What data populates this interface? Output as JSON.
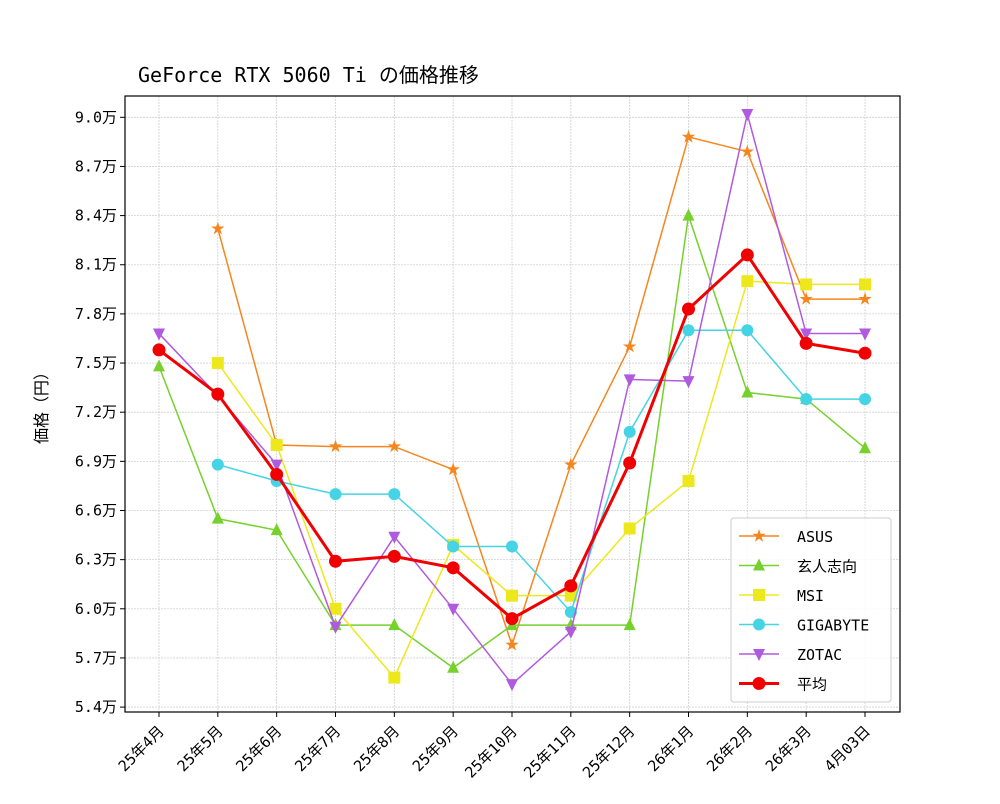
{
  "chart_data": {
    "type": "line",
    "title": "GeForce RTX 5060 Ti の価格推移",
    "xlabel": "",
    "ylabel": "価格（円）",
    "categories": [
      "25年4月",
      "25年5月",
      "25年6月",
      "25年7月",
      "25年8月",
      "25年9月",
      "25年10月",
      "25年11月",
      "25年12月",
      "26年1月",
      "26年2月",
      "26年3月",
      "4月03日"
    ],
    "yticks": [
      5.4,
      5.7,
      6.0,
      6.3,
      6.6,
      6.9,
      7.2,
      7.5,
      7.8,
      8.1,
      8.4,
      8.7,
      9.0
    ],
    "ytick_labels": [
      "5.4万",
      "5.7万",
      "6.0万",
      "6.3万",
      "6.6万",
      "6.9万",
      "7.2万",
      "7.5万",
      "7.8万",
      "8.1万",
      "8.4万",
      "8.7万",
      "9.0万"
    ],
    "y_unit": "万円",
    "ylim": [
      5.37,
      9.13
    ],
    "grid": true,
    "legend_position": "lower-right",
    "series": [
      {
        "name": "ASUS",
        "color": "#f5861f",
        "marker": "star",
        "values": [
          null,
          8.32,
          7.0,
          6.99,
          6.99,
          6.85,
          5.78,
          6.88,
          7.6,
          8.88,
          8.79,
          7.89,
          7.89
        ]
      },
      {
        "name": "玄人志向",
        "color": "#76d12c",
        "marker": "triangle-up",
        "values": [
          7.48,
          6.55,
          6.48,
          5.9,
          5.9,
          5.64,
          5.9,
          5.9,
          5.9,
          8.4,
          7.32,
          7.28,
          6.98
        ]
      },
      {
        "name": "MSI",
        "color": "#ede81c",
        "marker": "square",
        "values": [
          null,
          7.5,
          7.0,
          6.0,
          5.58,
          6.39,
          6.08,
          6.08,
          6.49,
          6.78,
          8.0,
          7.98,
          7.98
        ]
      },
      {
        "name": "GIGABYTE",
        "color": "#45d4e3",
        "marker": "circle",
        "values": [
          null,
          6.88,
          6.78,
          6.7,
          6.7,
          6.38,
          6.38,
          5.98,
          7.08,
          7.7,
          7.7,
          7.28,
          7.28
        ]
      },
      {
        "name": "ZOTAC",
        "color": "#b05ae0",
        "marker": "triangle-down",
        "values": [
          7.68,
          7.3,
          6.88,
          5.89,
          6.44,
          6.0,
          5.54,
          5.86,
          7.4,
          7.39,
          9.02,
          7.68,
          7.68
        ]
      },
      {
        "name": "平均",
        "color": "#f00000",
        "marker": "circle",
        "bold": true,
        "values": [
          7.58,
          7.31,
          6.82,
          6.29,
          6.32,
          6.25,
          5.94,
          6.14,
          6.89,
          7.83,
          8.16,
          7.62,
          7.56
        ]
      }
    ]
  }
}
